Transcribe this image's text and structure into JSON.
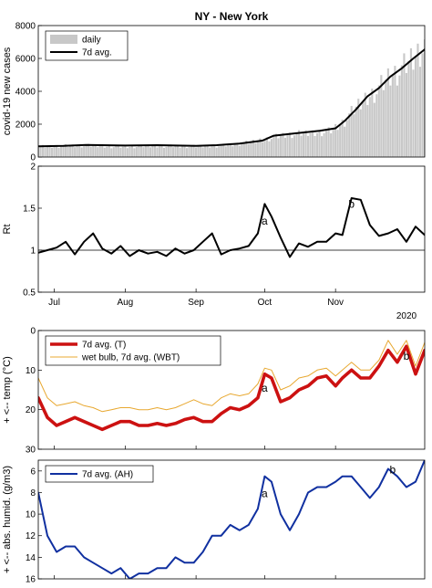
{
  "chart_data": [
    {
      "type": "bar",
      "title": "NY - New York",
      "ylabel": "covid-19 new cases",
      "ylim": [
        0,
        8000
      ],
      "yticks": [
        0,
        2000,
        4000,
        6000,
        8000
      ],
      "x_range": [
        "2020-06-24",
        "2020-12-10"
      ],
      "legend": {
        "placement": "top-left",
        "entries": [
          "daily",
          "7d avg."
        ]
      },
      "series": [
        {
          "name": "daily",
          "type": "bar",
          "color": "#c8c8c8",
          "x": [
            "2020-06-24",
            "2020-07-15",
            "2020-08-01",
            "2020-08-15",
            "2020-09-01",
            "2020-09-15",
            "2020-09-25",
            "2020-10-01",
            "2020-10-10",
            "2020-10-20",
            "2020-10-30",
            "2020-11-05",
            "2020-11-10",
            "2020-11-15",
            "2020-11-20",
            "2020-11-25",
            "2020-11-30",
            "2020-12-05",
            "2020-12-10"
          ],
          "y": [
            650,
            700,
            620,
            680,
            640,
            720,
            900,
            1100,
            1350,
            1450,
            1600,
            2200,
            3000,
            3700,
            4200,
            5000,
            5300,
            6000,
            6700
          ]
        },
        {
          "name": "7d avg.",
          "type": "line",
          "color": "#000000",
          "x": [
            "2020-06-24",
            "2020-07-05",
            "2020-07-15",
            "2020-08-01",
            "2020-08-15",
            "2020-09-01",
            "2020-09-10",
            "2020-09-20",
            "2020-09-30",
            "2020-10-05",
            "2020-10-15",
            "2020-10-25",
            "2020-11-01",
            "2020-11-05",
            "2020-11-10",
            "2020-11-15",
            "2020-11-20",
            "2020-11-25",
            "2020-11-30",
            "2020-12-05",
            "2020-12-10"
          ],
          "y": [
            650,
            680,
            740,
            700,
            720,
            680,
            720,
            820,
            1000,
            1300,
            1450,
            1600,
            1750,
            2200,
            2900,
            3700,
            4200,
            4900,
            5400,
            6000,
            6550
          ]
        }
      ]
    },
    {
      "type": "line",
      "ylabel": "Rt",
      "ylim": [
        0.5,
        2
      ],
      "yticks": [
        0.5,
        1,
        1.5,
        2
      ],
      "x_range": [
        "2020-06-24",
        "2020-12-10"
      ],
      "x_tick_labels": [
        "Jul",
        "Aug",
        "Sep",
        "Oct",
        "Nov"
      ],
      "x_tick_dates": [
        "2020-07-01",
        "2020-08-01",
        "2020-09-01",
        "2020-10-01",
        "2020-11-01"
      ],
      "year_label": "2020",
      "reference_line": 1,
      "annotations": [
        {
          "text": "a",
          "x": "2020-10-01",
          "y": 1.35
        },
        {
          "text": "b",
          "x": "2020-11-08",
          "y": 1.55
        }
      ],
      "series": [
        {
          "name": "Rt",
          "color": "#000000",
          "x": [
            "2020-06-24",
            "2020-06-28",
            "2020-07-02",
            "2020-07-06",
            "2020-07-10",
            "2020-07-14",
            "2020-07-18",
            "2020-07-22",
            "2020-07-26",
            "2020-07-30",
            "2020-08-03",
            "2020-08-07",
            "2020-08-11",
            "2020-08-15",
            "2020-08-19",
            "2020-08-23",
            "2020-08-27",
            "2020-08-31",
            "2020-09-04",
            "2020-09-08",
            "2020-09-12",
            "2020-09-16",
            "2020-09-20",
            "2020-09-24",
            "2020-09-28",
            "2020-10-01",
            "2020-10-04",
            "2020-10-08",
            "2020-10-12",
            "2020-10-16",
            "2020-10-20",
            "2020-10-24",
            "2020-10-28",
            "2020-11-01",
            "2020-11-04",
            "2020-11-08",
            "2020-11-12",
            "2020-11-16",
            "2020-11-20",
            "2020-11-24",
            "2020-11-28",
            "2020-12-02",
            "2020-12-06",
            "2020-12-10"
          ],
          "y": [
            0.97,
            1.0,
            1.03,
            1.1,
            0.95,
            1.1,
            1.2,
            1.02,
            0.96,
            1.05,
            0.93,
            1.0,
            0.96,
            0.98,
            0.93,
            1.02,
            0.96,
            1.0,
            1.1,
            1.2,
            0.95,
            1.0,
            1.02,
            1.05,
            1.2,
            1.55,
            1.4,
            1.15,
            0.92,
            1.08,
            1.04,
            1.1,
            1.1,
            1.2,
            1.18,
            1.62,
            1.6,
            1.3,
            1.17,
            1.2,
            1.25,
            1.1,
            1.28,
            1.18
          ]
        }
      ]
    },
    {
      "type": "line",
      "ylabel": "+ <-- temp (°C)",
      "ylim": [
        30,
        0
      ],
      "yticks": [
        0,
        10,
        20,
        30
      ],
      "inverted_y": true,
      "x_range": [
        "2020-06-24",
        "2020-12-10"
      ],
      "legend": {
        "placement": "top-left",
        "entries": [
          "7d avg. (T)",
          "wet bulb, 7d avg. (WBT)"
        ]
      },
      "annotations": [
        {
          "text": "a",
          "x": "2020-10-01",
          "y": 14.5
        },
        {
          "text": "b",
          "x": "2020-12-02",
          "y": 6.5
        }
      ],
      "series": [
        {
          "name": "7d avg. (T)",
          "color": "#cc1111",
          "x": [
            "2020-06-24",
            "2020-06-28",
            "2020-07-02",
            "2020-07-06",
            "2020-07-10",
            "2020-07-14",
            "2020-07-18",
            "2020-07-22",
            "2020-07-26",
            "2020-07-30",
            "2020-08-03",
            "2020-08-07",
            "2020-08-11",
            "2020-08-15",
            "2020-08-19",
            "2020-08-23",
            "2020-08-27",
            "2020-08-31",
            "2020-09-04",
            "2020-09-08",
            "2020-09-12",
            "2020-09-16",
            "2020-09-20",
            "2020-09-24",
            "2020-09-28",
            "2020-10-01",
            "2020-10-04",
            "2020-10-08",
            "2020-10-12",
            "2020-10-16",
            "2020-10-20",
            "2020-10-24",
            "2020-10-28",
            "2020-11-01",
            "2020-11-04",
            "2020-11-08",
            "2020-11-12",
            "2020-11-16",
            "2020-11-20",
            "2020-11-24",
            "2020-11-28",
            "2020-12-02",
            "2020-12-06",
            "2020-12-10"
          ],
          "y": [
            17,
            22,
            24,
            23,
            22,
            23,
            24,
            25,
            24,
            23,
            23,
            24,
            24,
            23.5,
            24,
            23.5,
            22.5,
            22,
            23,
            23,
            21,
            19.5,
            20,
            19,
            17,
            11,
            12,
            18,
            17,
            15,
            14,
            12,
            11.5,
            14,
            12,
            10,
            12,
            12,
            9,
            5,
            8,
            4,
            11,
            5
          ]
        },
        {
          "name": "wet bulb, 7d avg. (WBT)",
          "color": "#e8a830",
          "x": [
            "2020-06-24",
            "2020-06-28",
            "2020-07-02",
            "2020-07-06",
            "2020-07-10",
            "2020-07-14",
            "2020-07-18",
            "2020-07-22",
            "2020-07-26",
            "2020-07-30",
            "2020-08-03",
            "2020-08-07",
            "2020-08-11",
            "2020-08-15",
            "2020-08-19",
            "2020-08-23",
            "2020-08-27",
            "2020-08-31",
            "2020-09-04",
            "2020-09-08",
            "2020-09-12",
            "2020-09-16",
            "2020-09-20",
            "2020-09-24",
            "2020-09-28",
            "2020-10-01",
            "2020-10-04",
            "2020-10-08",
            "2020-10-12",
            "2020-10-16",
            "2020-10-20",
            "2020-10-24",
            "2020-10-28",
            "2020-11-01",
            "2020-11-04",
            "2020-11-08",
            "2020-11-12",
            "2020-11-16",
            "2020-11-20",
            "2020-11-24",
            "2020-11-28",
            "2020-12-02",
            "2020-12-06",
            "2020-12-10"
          ],
          "y": [
            12,
            17,
            19,
            18.5,
            18,
            19,
            19.5,
            20.5,
            20,
            19.5,
            19.5,
            20,
            20,
            19.5,
            20,
            19.5,
            18.5,
            17.5,
            18.5,
            19,
            17,
            16,
            16.5,
            16,
            13.5,
            9.5,
            10,
            15,
            14,
            12,
            11.5,
            10,
            9.5,
            11.5,
            10,
            8,
            10,
            10,
            7.5,
            2.5,
            6,
            2.5,
            9,
            3
          ]
        }
      ]
    },
    {
      "type": "line",
      "ylabel": "+ <-- abs. humid. (g/m3)",
      "ylim": [
        16,
        5
      ],
      "yticks": [
        6,
        8,
        10,
        12,
        14,
        16
      ],
      "inverted_y": true,
      "x_range": [
        "2020-06-24",
        "2020-12-10"
      ],
      "legend": {
        "placement": "top-left",
        "entries": [
          "7d avg. (AH)"
        ]
      },
      "annotations": [
        {
          "text": "a",
          "x": "2020-10-01",
          "y": 8.1
        },
        {
          "text": "b",
          "x": "2020-11-26",
          "y": 5.9
        }
      ],
      "series": [
        {
          "name": "7d avg. (AH)",
          "color": "#1030a0",
          "x": [
            "2020-06-24",
            "2020-06-28",
            "2020-07-02",
            "2020-07-06",
            "2020-07-10",
            "2020-07-14",
            "2020-07-18",
            "2020-07-22",
            "2020-07-26",
            "2020-07-30",
            "2020-08-03",
            "2020-08-07",
            "2020-08-11",
            "2020-08-15",
            "2020-08-19",
            "2020-08-23",
            "2020-08-27",
            "2020-08-31",
            "2020-09-04",
            "2020-09-08",
            "2020-09-12",
            "2020-09-16",
            "2020-09-20",
            "2020-09-24",
            "2020-09-28",
            "2020-10-01",
            "2020-10-04",
            "2020-10-08",
            "2020-10-12",
            "2020-10-16",
            "2020-10-20",
            "2020-10-24",
            "2020-10-28",
            "2020-11-01",
            "2020-11-04",
            "2020-11-08",
            "2020-11-12",
            "2020-11-16",
            "2020-11-20",
            "2020-11-24",
            "2020-11-28",
            "2020-12-02",
            "2020-12-06",
            "2020-12-10"
          ],
          "y": [
            8,
            12,
            13.5,
            13,
            13,
            14,
            14.5,
            15,
            15.5,
            15,
            16,
            15.5,
            15.5,
            15,
            15,
            14,
            14.5,
            14.5,
            13.5,
            12,
            12,
            11,
            11.5,
            11,
            9.5,
            6.5,
            7,
            10,
            11.5,
            10,
            8,
            7.5,
            7.5,
            7,
            6.5,
            6.5,
            7.5,
            8.5,
            7.5,
            5.8,
            6.5,
            7.5,
            7,
            5
          ]
        }
      ]
    }
  ]
}
